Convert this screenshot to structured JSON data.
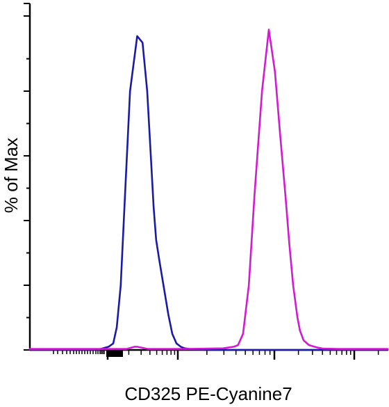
{
  "chart_data": {
    "type": "line",
    "title": "",
    "xlabel": "CD325 PE-Cyanine7",
    "ylabel": "% of Max",
    "x_scale": "biexponential",
    "xlim": [
      0,
      100
    ],
    "ylim": [
      0,
      100
    ],
    "grid": false,
    "legend": "none",
    "x_tick_labels": [],
    "y_tick_labels": [],
    "series": [
      {
        "color": "#1a1aa6",
        "x": [
          0,
          18.8,
          22,
          23.3,
          24.3,
          25.4,
          26.6,
          28,
          30,
          31.5,
          32.8,
          33.8,
          34.6,
          35.3,
          36.3,
          37.5,
          38.7,
          39.8,
          41,
          42.2,
          43.3,
          44.6,
          46.7,
          49,
          100
        ],
        "y": [
          0,
          0,
          1,
          2,
          7,
          20,
          48,
          80,
          97,
          95,
          80,
          60,
          44,
          34,
          27,
          19,
          11,
          5,
          2,
          1,
          0.5,
          0.3,
          0.2,
          0,
          0
        ]
      },
      {
        "color": "#d11ad1",
        "x": [
          0,
          27,
          29.3,
          30,
          33,
          44,
          54,
          57,
          58.2,
          59.6,
          61.2,
          62.8,
          64.9,
          66.8,
          68.5,
          70,
          71.5,
          72.5,
          73.6,
          74.8,
          75.5,
          76.5,
          78,
          80.5,
          82,
          86,
          100
        ],
        "y": [
          0.3,
          0.3,
          1,
          1,
          0.3,
          0.3,
          0.5,
          1,
          1.5,
          5,
          20,
          48,
          80,
          99,
          86,
          66,
          47,
          33,
          20,
          10,
          6,
          3,
          1.5,
          0.7,
          0.4,
          0.3,
          0.3
        ]
      }
    ]
  }
}
